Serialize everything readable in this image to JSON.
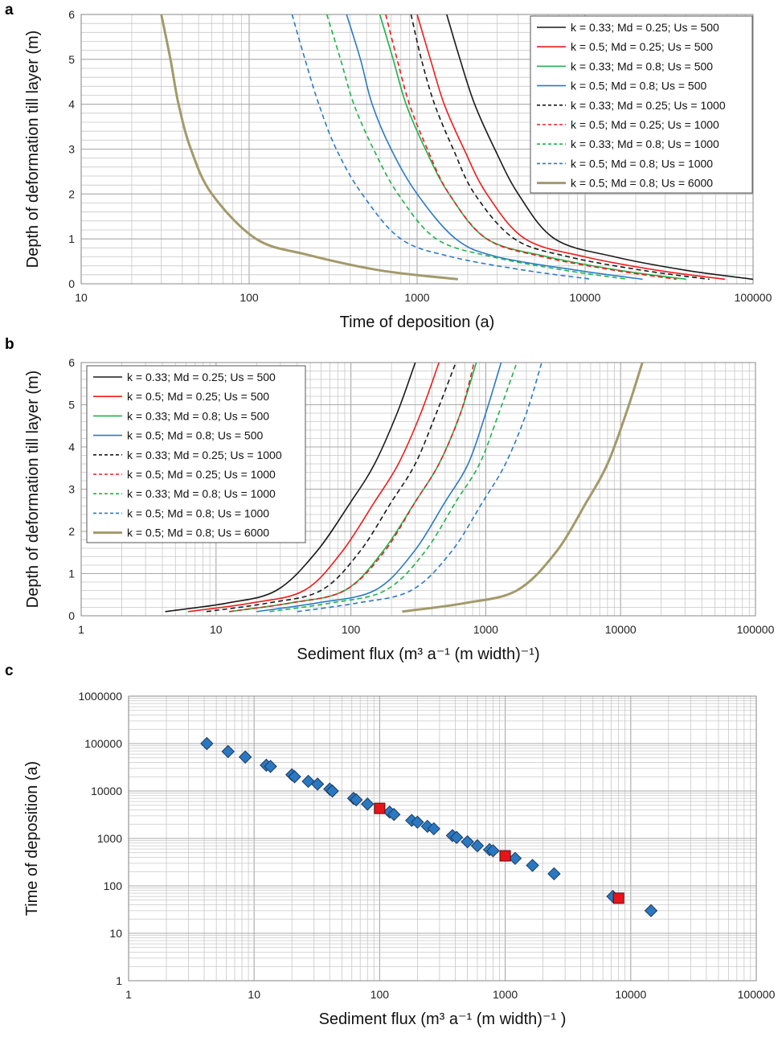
{
  "figure": {
    "panel_a_letter": "a",
    "panel_b_letter": "b",
    "panel_c_letter": "c"
  },
  "colors": {
    "black": "#1a1a1a",
    "red": "#ee1c1c",
    "green": "#1db34a",
    "blue": "#2b7ac5",
    "olive": "#a39a6b",
    "marker_blue": "#2a78c2",
    "marker_red": "#e8141b",
    "grid": "#c8c8c8"
  },
  "legend": [
    {
      "label": "k = 0.33; Md = 0.25; Us = 500",
      "color": "#1a1a1a",
      "dash": "solid",
      "width": 1.6
    },
    {
      "label": "k = 0.5; Md = 0.25; Us = 500",
      "color": "#ee1c1c",
      "dash": "solid",
      "width": 1.6
    },
    {
      "label": "k = 0.33; Md = 0.8; Us = 500",
      "color": "#1db34a",
      "dash": "solid",
      "width": 1.6
    },
    {
      "label": "k = 0.5; Md = 0.8; Us = 500",
      "color": "#2b7ac5",
      "dash": "solid",
      "width": 1.6
    },
    {
      "label": "k = 0.33; Md = 0.25; Us = 1000",
      "color": "#1a1a1a",
      "dash": "dashed",
      "width": 1.6
    },
    {
      "label": "k = 0.5; Md = 0.25; Us = 1000",
      "color": "#ee1c1c",
      "dash": "dashed",
      "width": 1.6
    },
    {
      "label": "k = 0.33; Md = 0.8; Us = 1000",
      "color": "#1db34a",
      "dash": "dashed",
      "width": 1.6
    },
    {
      "label": "k = 0.5; Md = 0.8; Us = 1000",
      "color": "#2b7ac5",
      "dash": "dashed",
      "width": 1.6
    },
    {
      "label": "k = 0.5; Md = 0.8; Us = 6000",
      "color": "#a39a6b",
      "dash": "solid",
      "width": 3
    }
  ],
  "chart_data": [
    {
      "panel": "a",
      "type": "line",
      "xlabel": "Time of deposition (a)",
      "ylabel": "Depth of deformation till layer (m)",
      "xscale": "log",
      "xlim": [
        10,
        100000
      ],
      "ylim": [
        0,
        6
      ],
      "xticks": [
        "10",
        "100",
        "1000",
        "10000",
        "100000"
      ],
      "yticks": [
        "0",
        "1",
        "2",
        "3",
        "4",
        "5",
        "6"
      ],
      "legend_position": "top-right",
      "grid": true,
      "series": [
        {
          "name": "k = 0.33; Md = 0.25; Us = 500",
          "points": [
            [
              1500,
              6
            ],
            [
              1800,
              5
            ],
            [
              2200,
              4
            ],
            [
              2900,
              3
            ],
            [
              4000,
              2
            ],
            [
              6600,
              1
            ],
            [
              15000,
              0.6
            ],
            [
              40000,
              0.3
            ],
            [
              100000,
              0.1
            ]
          ]
        },
        {
          "name": "k = 0.5; Md = 0.25; Us = 500",
          "points": [
            [
              1000,
              6
            ],
            [
              1200,
              5
            ],
            [
              1450,
              4
            ],
            [
              1900,
              3
            ],
            [
              2600,
              2
            ],
            [
              4400,
              1
            ],
            [
              10000,
              0.6
            ],
            [
              27000,
              0.3
            ],
            [
              68000,
              0.1
            ]
          ]
        },
        {
          "name": "k = 0.33; Md = 0.8; Us = 500",
          "points": [
            [
              600,
              6
            ],
            [
              720,
              5
            ],
            [
              860,
              4
            ],
            [
              1120,
              3
            ],
            [
              1550,
              2
            ],
            [
              2600,
              1
            ],
            [
              6000,
              0.6
            ],
            [
              16000,
              0.3
            ],
            [
              40000,
              0.1
            ]
          ]
        },
        {
          "name": "k = 0.5; Md = 0.8; Us = 500",
          "points": [
            [
              380,
              6
            ],
            [
              460,
              5
            ],
            [
              540,
              4
            ],
            [
              700,
              3
            ],
            [
              1000,
              2
            ],
            [
              1700,
              1
            ],
            [
              3000,
              0.6
            ],
            [
              9000,
              0.3
            ],
            [
              22000,
              0.1
            ]
          ]
        },
        {
          "name": "k = 0.33; Md = 0.25; Us = 1000",
          "points": [
            [
              920,
              6
            ],
            [
              1060,
              5
            ],
            [
              1270,
              4
            ],
            [
              1640,
              3
            ],
            [
              2200,
              2
            ],
            [
              3800,
              1
            ],
            [
              8000,
              0.6
            ],
            [
              22000,
              0.3
            ],
            [
              55000,
              0.1
            ]
          ]
        },
        {
          "name": "k = 0.5; Md = 0.25; Us = 1000",
          "points": [
            [
              650,
              6
            ],
            [
              760,
              5
            ],
            [
              900,
              4
            ],
            [
              1150,
              3
            ],
            [
              1550,
              2
            ],
            [
              2600,
              1
            ],
            [
              5600,
              0.6
            ],
            [
              15000,
              0.3
            ],
            [
              35000,
              0.1
            ]
          ]
        },
        {
          "name": "k = 0.33; Md = 0.8; Us = 1000",
          "points": [
            [
              290,
              6
            ],
            [
              350,
              5
            ],
            [
              420,
              4
            ],
            [
              550,
              3
            ],
            [
              770,
              2
            ],
            [
              1300,
              1
            ],
            [
              2800,
              0.6
            ],
            [
              7600,
              0.3
            ],
            [
              18000,
              0.1
            ]
          ]
        },
        {
          "name": "k = 0.5; Md = 0.8; Us = 1000",
          "points": [
            [
              180,
              6
            ],
            [
              215,
              5
            ],
            [
              260,
              4
            ],
            [
              330,
              3
            ],
            [
              470,
              2
            ],
            [
              800,
              1
            ],
            [
              1600,
              0.6
            ],
            [
              4400,
              0.3
            ],
            [
              11000,
              0.1
            ]
          ]
        },
        {
          "name": "k = 0.5; Md = 0.8; Us = 6000",
          "points": [
            [
              30,
              6
            ],
            [
              34,
              5
            ],
            [
              38,
              4
            ],
            [
              45,
              3
            ],
            [
              60,
              2
            ],
            [
              110,
              1
            ],
            [
              220,
              0.65
            ],
            [
              600,
              0.3
            ],
            [
              1750,
              0.1
            ]
          ]
        }
      ]
    },
    {
      "panel": "b",
      "type": "line",
      "xlabel": "Sediment flux (m³ a⁻¹ (m width)⁻¹)",
      "ylabel": "Depth of deformation till layer (m)",
      "xscale": "log",
      "xlim": [
        1,
        100000
      ],
      "ylim": [
        0,
        6
      ],
      "xticks": [
        "1",
        "10",
        "100",
        "1000",
        "10000",
        "100000"
      ],
      "yticks": [
        "0",
        "1",
        "2",
        "3",
        "4",
        "5",
        "6"
      ],
      "legend_position": "top-left",
      "grid": true,
      "series": [
        {
          "name": "k = 0.33; Md = 0.25; Us = 500",
          "points": [
            [
              4.2,
              0.1
            ],
            [
              12,
              0.3
            ],
            [
              28,
              0.6
            ],
            [
              55,
              1.5
            ],
            [
              100,
              2.7
            ],
            [
              150,
              3.6
            ],
            [
              220,
              4.8
            ],
            [
              300,
              6
            ]
          ]
        },
        {
          "name": "k = 0.5; Md = 0.25; Us = 500",
          "points": [
            [
              6.2,
              0.1
            ],
            [
              18,
              0.3
            ],
            [
              45,
              0.6
            ],
            [
              85,
              1.5
            ],
            [
              150,
              2.7
            ],
            [
              225,
              3.6
            ],
            [
              330,
              4.8
            ],
            [
              450,
              6
            ]
          ]
        },
        {
          "name": "k = 0.33; Md = 0.8; Us = 500",
          "points": [
            [
              12.5,
              0.1
            ],
            [
              35,
              0.3
            ],
            [
              90,
              0.6
            ],
            [
              170,
              1.5
            ],
            [
              300,
              2.7
            ],
            [
              450,
              3.6
            ],
            [
              650,
              4.8
            ],
            [
              850,
              6
            ]
          ]
        },
        {
          "name": "k = 0.5; Md = 0.8; Us = 500",
          "points": [
            [
              20,
              0.1
            ],
            [
              55,
              0.3
            ],
            [
              150,
              0.6
            ],
            [
              290,
              1.5
            ],
            [
              500,
              2.7
            ],
            [
              740,
              3.6
            ],
            [
              1000,
              4.8
            ],
            [
              1300,
              6
            ]
          ]
        },
        {
          "name": "k = 0.33; Md = 0.25; Us = 1000",
          "points": [
            [
              8.5,
              0.1
            ],
            [
              24,
              0.3
            ],
            [
              60,
              0.6
            ],
            [
              115,
              1.5
            ],
            [
              200,
              2.7
            ],
            [
              300,
              3.6
            ],
            [
              430,
              4.8
            ],
            [
              600,
              6
            ]
          ]
        },
        {
          "name": "k = 0.5; Md = 0.25; Us = 1000",
          "points": [
            [
              12.5,
              0.1
            ],
            [
              35,
              0.3
            ],
            [
              90,
              0.6
            ],
            [
              175,
              1.5
            ],
            [
              300,
              2.7
            ],
            [
              450,
              3.6
            ],
            [
              650,
              4.8
            ],
            [
              820,
              6
            ]
          ]
        },
        {
          "name": "k = 0.33; Md = 0.8; Us = 1000",
          "points": [
            [
              25,
              0.1
            ],
            [
              70,
              0.3
            ],
            [
              180,
              0.6
            ],
            [
              350,
              1.5
            ],
            [
              600,
              2.7
            ],
            [
              900,
              3.6
            ],
            [
              1250,
              4.8
            ],
            [
              1700,
              6
            ]
          ]
        },
        {
          "name": "k = 0.5; Md = 0.8; Us = 1000",
          "points": [
            [
              40,
              0.1
            ],
            [
              110,
              0.3
            ],
            [
              280,
              0.6
            ],
            [
              550,
              1.5
            ],
            [
              950,
              2.7
            ],
            [
              1400,
              3.6
            ],
            [
              2000,
              4.8
            ],
            [
              2600,
              6
            ]
          ]
        },
        {
          "name": "k = 0.5; Md = 0.8; Us = 6000",
          "points": [
            [
              240,
              0.1
            ],
            [
              700,
              0.3
            ],
            [
              1700,
              0.6
            ],
            [
              3300,
              1.5
            ],
            [
              5600,
              2.7
            ],
            [
              8000,
              3.6
            ],
            [
              11000,
              4.8
            ],
            [
              14500,
              6
            ]
          ]
        }
      ]
    },
    {
      "panel": "c",
      "type": "scatter",
      "xlabel": "Sediment flux (m³ a⁻¹ (m width)⁻¹ )",
      "ylabel": "Time of deposition (a)",
      "xscale": "log",
      "yscale": "log",
      "xlim": [
        1,
        100000
      ],
      "ylim": [
        1,
        1000000
      ],
      "xticks": [
        "1",
        "10",
        "100",
        "1000",
        "10000",
        "100000"
      ],
      "yticks": [
        "1",
        "10",
        "100",
        "1000",
        "10000",
        "100000",
        "1000000"
      ],
      "grid": true,
      "series": [
        {
          "marker": "diamond",
          "color": "#2a78c2",
          "points": [
            [
              4.2,
              100000
            ],
            [
              6.2,
              68000
            ],
            [
              8.5,
              52000
            ],
            [
              12.5,
              35000
            ],
            [
              13.5,
              33000
            ],
            [
              20,
              22000
            ],
            [
              21,
              20000
            ],
            [
              27,
              16000
            ],
            [
              32,
              14000
            ],
            [
              40,
              11000
            ],
            [
              42,
              10000
            ],
            [
              62,
              7000
            ],
            [
              65,
              6500
            ],
            [
              80,
              5300
            ],
            [
              120,
              3600
            ],
            [
              130,
              3200
            ],
            [
              180,
              2400
            ],
            [
              200,
              2200
            ],
            [
              240,
              1800
            ],
            [
              270,
              1600
            ],
            [
              380,
              1150
            ],
            [
              410,
              1050
            ],
            [
              500,
              850
            ],
            [
              600,
              700
            ],
            [
              750,
              580
            ],
            [
              800,
              550
            ],
            [
              1200,
              380
            ],
            [
              1650,
              270
            ],
            [
              2450,
              180
            ],
            [
              7200,
              60
            ],
            [
              14500,
              30
            ]
          ]
        },
        {
          "marker": "square",
          "color": "#e8141b",
          "points": [
            [
              100,
              4300
            ],
            [
              1000,
              430
            ],
            [
              8000,
              55
            ]
          ]
        }
      ]
    }
  ]
}
